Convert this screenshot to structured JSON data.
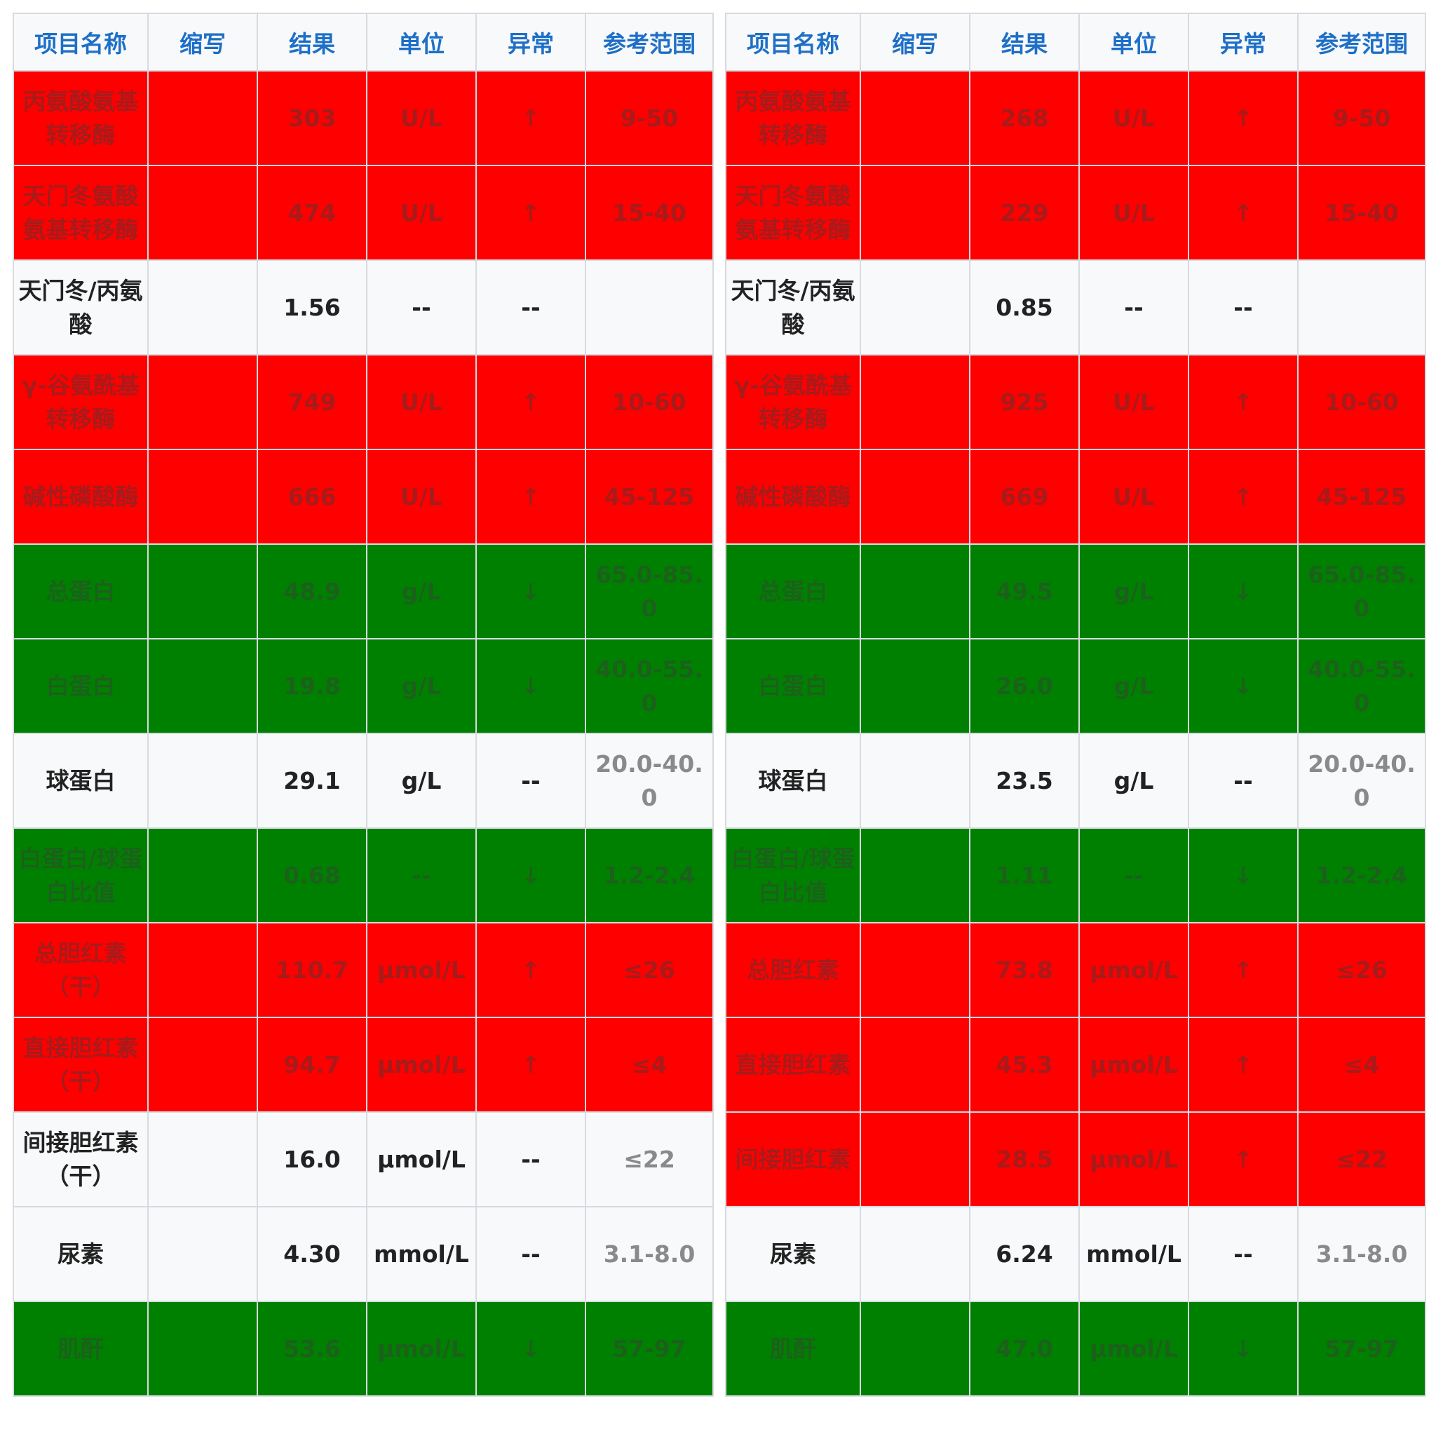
{
  "headers": {
    "name": "项目名称",
    "abbr": "缩写",
    "result": "结果",
    "unit": "单位",
    "flag": "异常",
    "ref": "参考范围"
  },
  "colors": {
    "high": "#ff0000",
    "low": "#008000",
    "normal": "#f7f9fb",
    "header_text": "#1e6fc7"
  },
  "left": {
    "rows": [
      {
        "status": "high",
        "name": "丙氨酸氨基转移酶",
        "abbr": "",
        "result": "303",
        "unit": "U/L",
        "flag": "↑",
        "ref": "9-50"
      },
      {
        "status": "high",
        "name": "天门冬氨酸氨基转移酶",
        "abbr": "",
        "result": "474",
        "unit": "U/L",
        "flag": "↑",
        "ref": "15-40"
      },
      {
        "status": "normal",
        "name": "天门冬/丙氨酸",
        "abbr": "",
        "result": "1.56",
        "unit": "--",
        "flag": "--",
        "ref": ""
      },
      {
        "status": "high",
        "name": "γ-谷氨酰基转移酶",
        "abbr": "",
        "result": "749",
        "unit": "U/L",
        "flag": "↑",
        "ref": "10-60"
      },
      {
        "status": "high",
        "name": "碱性磷酸酶",
        "abbr": "",
        "result": "666",
        "unit": "U/L",
        "flag": "↑",
        "ref": "45-125"
      },
      {
        "status": "low",
        "name": "总蛋白",
        "abbr": "",
        "result": "48.9",
        "unit": "g/L",
        "flag": "↓",
        "ref": "65.0-85.0"
      },
      {
        "status": "low",
        "name": "白蛋白",
        "abbr": "",
        "result": "19.8",
        "unit": "g/L",
        "flag": "↓",
        "ref": "40.0-55.0"
      },
      {
        "status": "normal",
        "name": "球蛋白",
        "abbr": "",
        "result": "29.1",
        "unit": "g/L",
        "flag": "--",
        "ref": "20.0-40.0"
      },
      {
        "status": "low",
        "name": "白蛋白/球蛋白比值",
        "abbr": "",
        "result": "0.68",
        "unit": "--",
        "flag": "↓",
        "ref": "1.2-2.4"
      },
      {
        "status": "high",
        "name": "总胆红素（干）",
        "abbr": "",
        "result": "110.7",
        "unit": "μmol/L",
        "flag": "↑",
        "ref": "≤26"
      },
      {
        "status": "high",
        "name": "直接胆红素（干）",
        "abbr": "",
        "result": "94.7",
        "unit": "μmol/L",
        "flag": "↑",
        "ref": "≤4"
      },
      {
        "status": "normal",
        "name": "间接胆红素（干）",
        "abbr": "",
        "result": "16.0",
        "unit": "μmol/L",
        "flag": "--",
        "ref": "≤22"
      },
      {
        "status": "normal",
        "name": "尿素",
        "abbr": "",
        "result": "4.30",
        "unit": "mmol/L",
        "flag": "--",
        "ref": "3.1-8.0"
      },
      {
        "status": "low",
        "name": "肌酐",
        "abbr": "",
        "result": "53.6",
        "unit": "μmol/L",
        "flag": "↓",
        "ref": "57-97"
      }
    ]
  },
  "right": {
    "rows": [
      {
        "status": "high",
        "name": "丙氨酸氨基转移酶",
        "abbr": "",
        "result": "268",
        "unit": "U/L",
        "flag": "↑",
        "ref": "9-50"
      },
      {
        "status": "high",
        "name": "天门冬氨酸氨基转移酶",
        "abbr": "",
        "result": "229",
        "unit": "U/L",
        "flag": "↑",
        "ref": "15-40"
      },
      {
        "status": "normal",
        "name": "天门冬/丙氨酸",
        "abbr": "",
        "result": "0.85",
        "unit": "--",
        "flag": "--",
        "ref": ""
      },
      {
        "status": "high",
        "name": "γ-谷氨酰基转移酶",
        "abbr": "",
        "result": "925",
        "unit": "U/L",
        "flag": "↑",
        "ref": "10-60"
      },
      {
        "status": "high",
        "name": "碱性磷酸酶",
        "abbr": "",
        "result": "669",
        "unit": "U/L",
        "flag": "↑",
        "ref": "45-125"
      },
      {
        "status": "low",
        "name": "总蛋白",
        "abbr": "",
        "result": "49.5",
        "unit": "g/L",
        "flag": "↓",
        "ref": "65.0-85.0"
      },
      {
        "status": "low",
        "name": "白蛋白",
        "abbr": "",
        "result": "26.0",
        "unit": "g/L",
        "flag": "↓",
        "ref": "40.0-55.0"
      },
      {
        "status": "normal",
        "name": "球蛋白",
        "abbr": "",
        "result": "23.5",
        "unit": "g/L",
        "flag": "--",
        "ref": "20.0-40.0"
      },
      {
        "status": "low",
        "name": "白蛋白/球蛋白比值",
        "abbr": "",
        "result": "1.11",
        "unit": "--",
        "flag": "↓",
        "ref": "1.2-2.4"
      },
      {
        "status": "high",
        "name": "总胆红素",
        "abbr": "",
        "result": "73.8",
        "unit": "μmol/L",
        "flag": "↑",
        "ref": "≤26"
      },
      {
        "status": "high",
        "name": "直接胆红素",
        "abbr": "",
        "result": "45.3",
        "unit": "μmol/L",
        "flag": "↑",
        "ref": "≤4"
      },
      {
        "status": "high",
        "name": "间接胆红素",
        "abbr": "",
        "result": "28.5",
        "unit": "μmol/L",
        "flag": "↑",
        "ref": "≤22"
      },
      {
        "status": "normal",
        "name": "尿素",
        "abbr": "",
        "result": "6.24",
        "unit": "mmol/L",
        "flag": "--",
        "ref": "3.1-8.0"
      },
      {
        "status": "low",
        "name": "肌酐",
        "abbr": "",
        "result": "47.0",
        "unit": "μmol/L",
        "flag": "↓",
        "ref": "57-97"
      }
    ]
  }
}
